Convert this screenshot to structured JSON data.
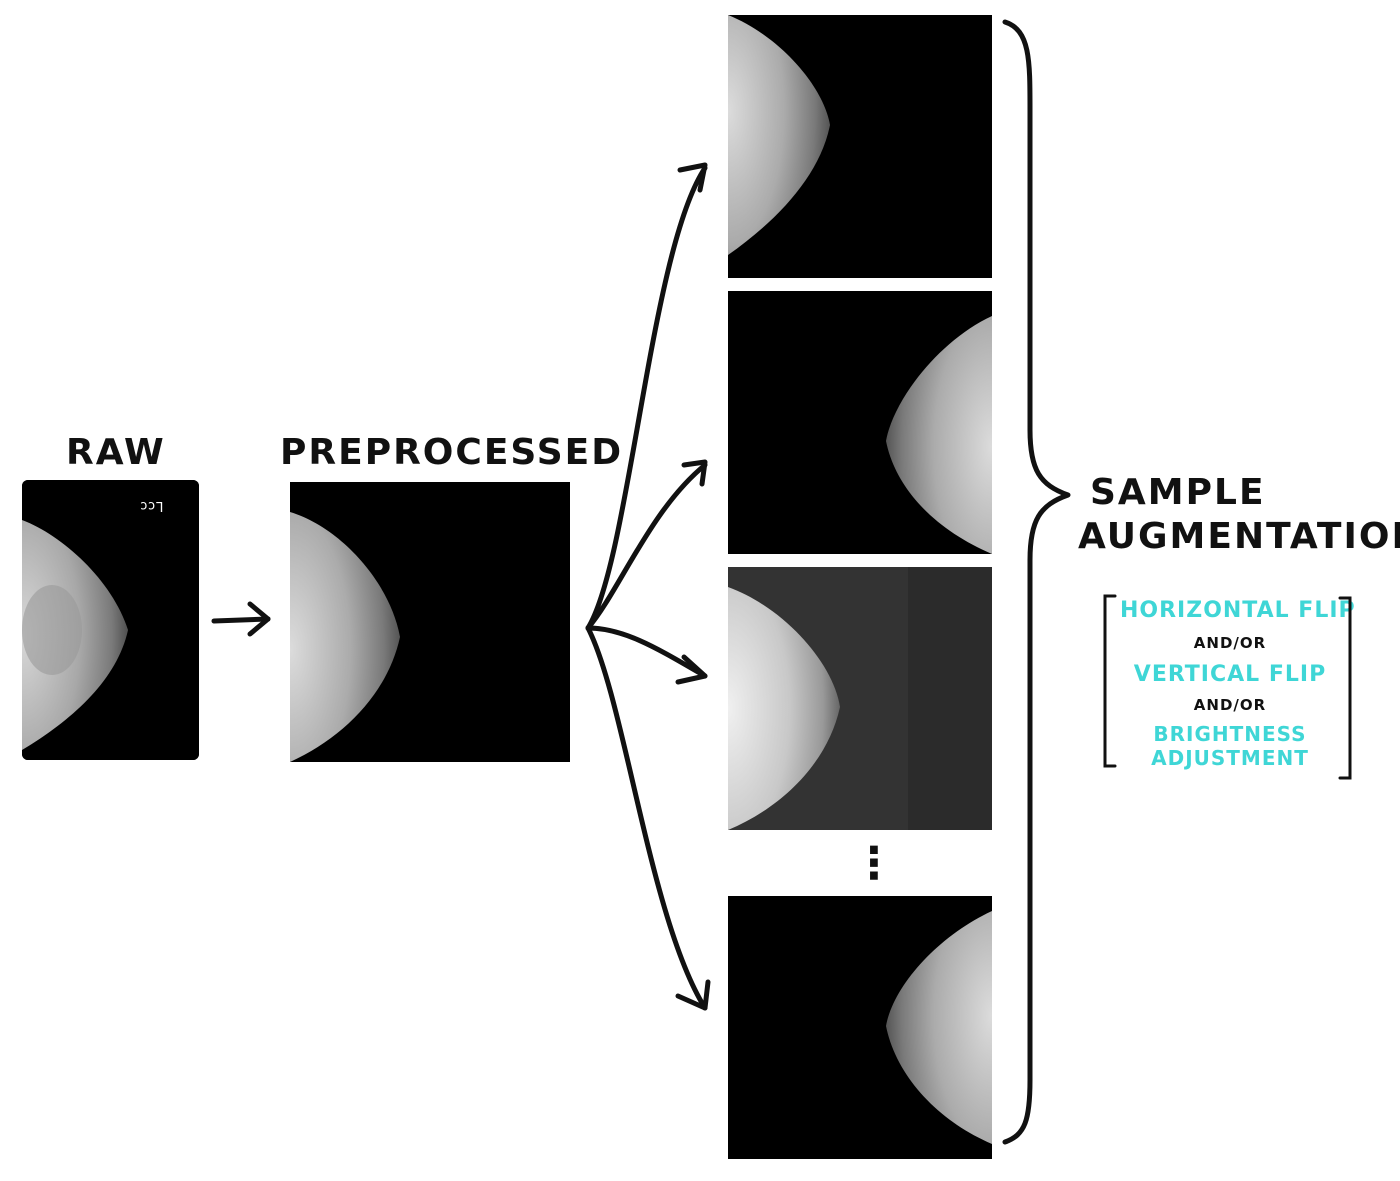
{
  "labels": {
    "raw": "RAW",
    "preprocessed": "PREPROCESSED",
    "sample_augmentations_line1": "SAMPLE",
    "sample_augmentations_line2": "AUGMENTATIONS",
    "raw_marker": "Lcc"
  },
  "augmentation_options": {
    "option1": "HORIZONTAL FLIP",
    "connector1": "AND/OR",
    "option2": "VERTICAL FLIP",
    "connector2": "AND/OR",
    "option3_line1": "BRIGHTNESS",
    "option3_line2": "ADJUSTMENT"
  },
  "colors": {
    "ink": "#111111",
    "accent": "#3fd6d6",
    "image_background": "#000000",
    "brightened_background": "#333333"
  },
  "ellipsis": "⋮"
}
